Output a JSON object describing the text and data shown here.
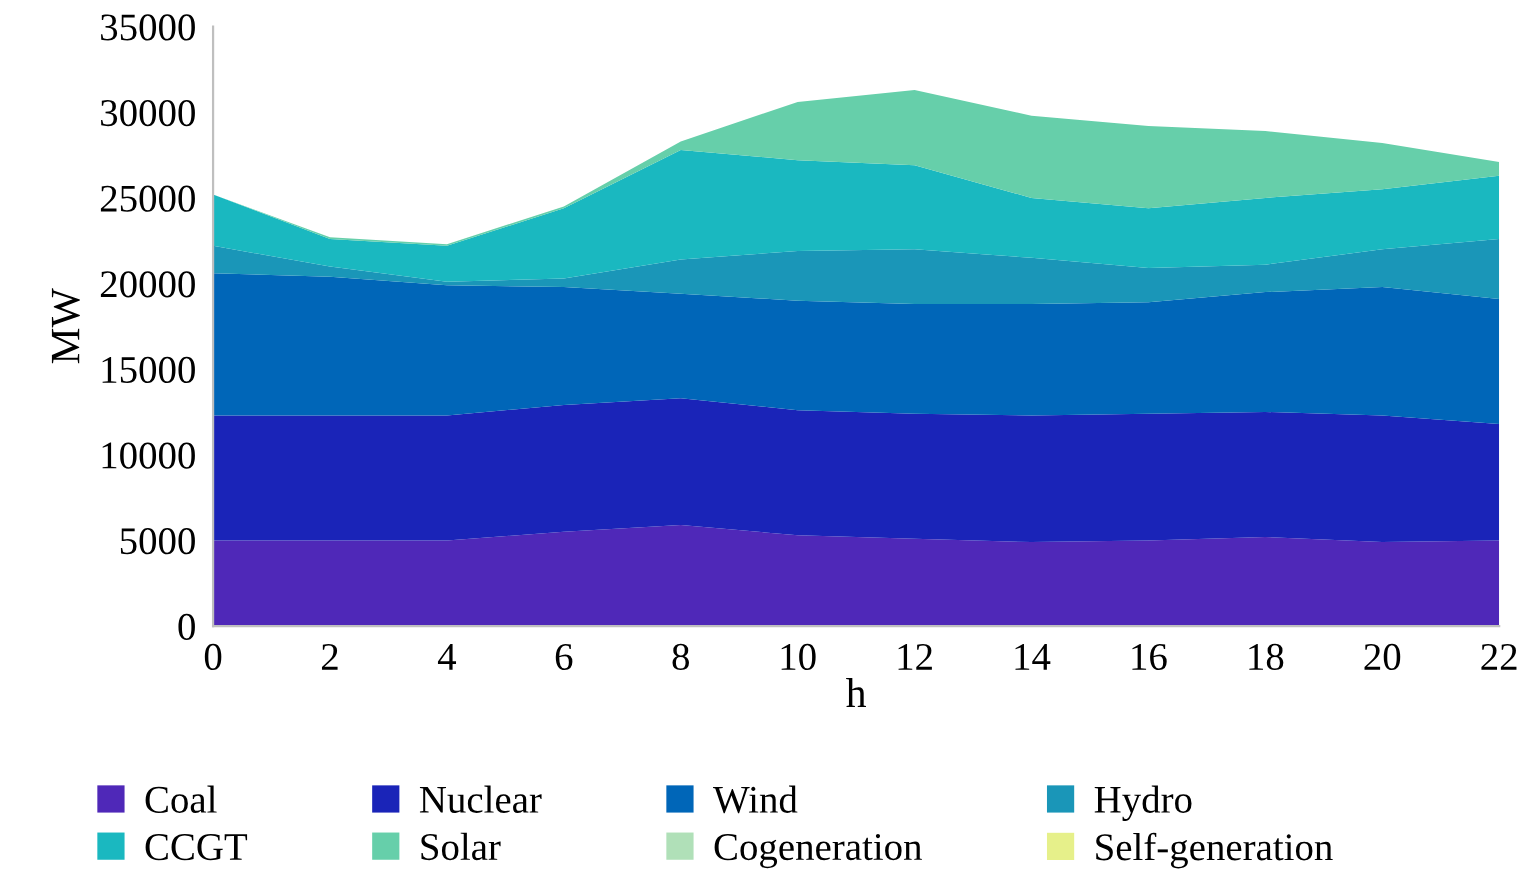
{
  "chart_data": {
    "type": "area",
    "stacked": true,
    "xlabel": "h",
    "ylabel": "MW",
    "x": [
      0,
      2,
      4,
      6,
      8,
      10,
      12,
      14,
      16,
      18,
      20,
      22
    ],
    "xlim": [
      0,
      22
    ],
    "xticks": [
      0,
      2,
      4,
      6,
      8,
      10,
      12,
      14,
      16,
      18,
      20,
      22
    ],
    "ylim": [
      0,
      35000
    ],
    "yticks": [
      0,
      5000,
      10000,
      15000,
      20000,
      25000,
      30000,
      35000
    ],
    "grid": false,
    "legend": "bottom",
    "series": [
      {
        "name": "Coal",
        "color": "#4f28b8",
        "values": [
          5000,
          5000,
          5000,
          5500,
          5900,
          5300,
          5100,
          4900,
          5000,
          5200,
          4900,
          5000
        ]
      },
      {
        "name": "Nuclear",
        "color": "#1a24b8",
        "values": [
          7300,
          7300,
          7300,
          7400,
          7400,
          7300,
          7300,
          7400,
          7400,
          7300,
          7400,
          6800
        ]
      },
      {
        "name": "Wind",
        "color": "#0066b8",
        "values": [
          8300,
          8100,
          7600,
          6900,
          6100,
          6400,
          6400,
          6500,
          6500,
          7000,
          7500,
          7300
        ]
      },
      {
        "name": "Hydro",
        "color": "#1a96b8",
        "values": [
          1600,
          600,
          200,
          500,
          2000,
          2900,
          3200,
          2700,
          2000,
          1600,
          2200,
          3500
        ]
      },
      {
        "name": "CCGT",
        "color": "#1ab8c0",
        "values": [
          3000,
          1600,
          2100,
          4100,
          6400,
          5300,
          4900,
          3500,
          3500,
          3900,
          3500,
          3700
        ]
      },
      {
        "name": "Solar",
        "color": "#66cfaa",
        "values": [
          0,
          100,
          100,
          100,
          500,
          3400,
          4400,
          4800,
          4800,
          3900,
          2700,
          800
        ]
      },
      {
        "name": "Cogeneration",
        "color": "#b0e0b8",
        "values": [
          null,
          null,
          null,
          null,
          null,
          null,
          null,
          null,
          null,
          null,
          null,
          null
        ]
      },
      {
        "name": "Self-generation",
        "color": "#e6f08a",
        "values": [
          null,
          null,
          null,
          null,
          null,
          null,
          null,
          null,
          null,
          null,
          null,
          null
        ]
      }
    ]
  }
}
